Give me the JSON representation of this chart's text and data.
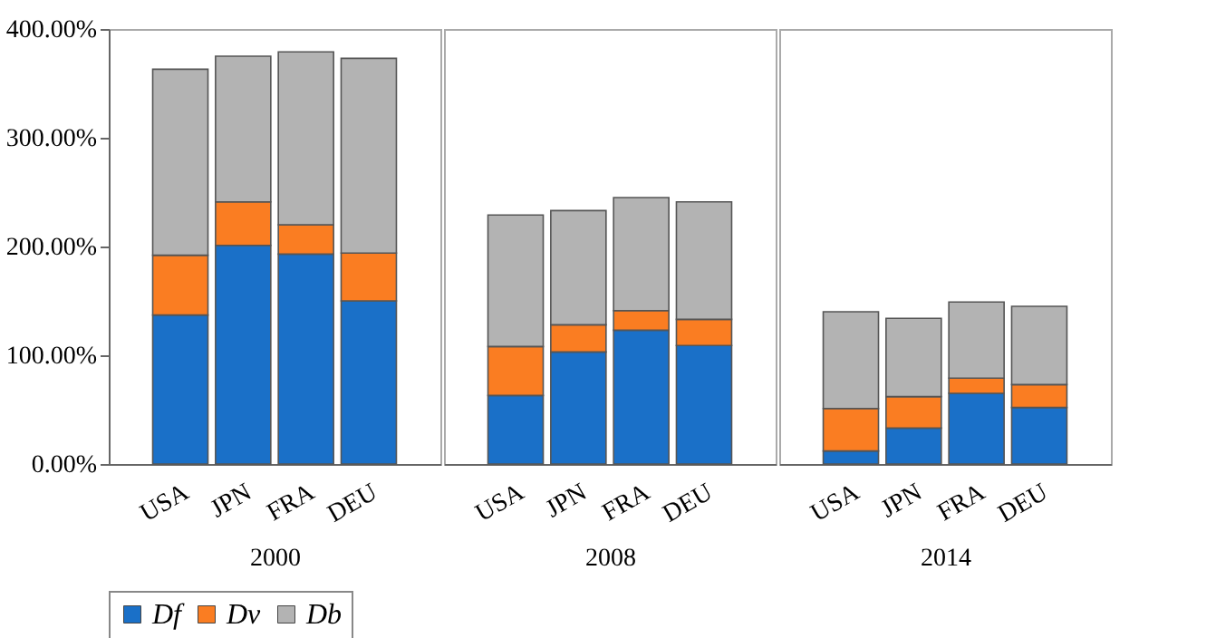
{
  "chart_data": [
    {
      "type": "bar",
      "stacked": true,
      "xlabel": "2000",
      "categories": [
        "USA",
        "JPN",
        "FRA",
        "DEU"
      ],
      "series": [
        {
          "name": "Df",
          "color": "#1a70c8",
          "values": [
            137,
            201,
            193,
            150
          ]
        },
        {
          "name": "Dv",
          "color": "#fa7d22",
          "values": [
            55,
            40,
            27,
            44
          ]
        },
        {
          "name": "Db",
          "color": "#b3b3b3",
          "values": [
            171,
            134,
            159,
            179
          ]
        }
      ],
      "ylim": [
        0,
        400
      ],
      "yticks": [
        {
          "value": 0,
          "label": "0.00%"
        },
        {
          "value": 100,
          "label": "100.00%"
        },
        {
          "value": 200,
          "label": "200.00%"
        },
        {
          "value": 300,
          "label": "300.00%"
        },
        {
          "value": 400,
          "label": "400.00%"
        }
      ],
      "legend": "bottom"
    },
    {
      "type": "bar",
      "stacked": true,
      "xlabel": "2008",
      "categories": [
        "USA",
        "JPN",
        "FRA",
        "DEU"
      ],
      "series": [
        {
          "color": "#1a70c8",
          "values": [
            63,
            103,
            123,
            109
          ]
        },
        {
          "color": "#fa7d22",
          "values": [
            45,
            25,
            18,
            24
          ]
        },
        {
          "color": "#b3b3b3",
          "values": [
            121,
            105,
            104,
            108
          ]
        }
      ],
      "ylim": [
        0,
        400
      ],
      "tick_labels": "x"
    },
    {
      "type": "bar",
      "stacked": true,
      "xlabel": "2014",
      "categories": [
        "USA",
        "JPN",
        "FRA",
        "DEU"
      ],
      "series": [
        {
          "color": "#1a70c8",
          "values": [
            12,
            33,
            65,
            52
          ]
        },
        {
          "color": "#fa7d22",
          "values": [
            39,
            29,
            14,
            21
          ]
        },
        {
          "color": "#b3b3b3",
          "values": [
            89,
            72,
            70,
            72
          ]
        }
      ],
      "ylim": [
        0,
        400
      ],
      "tick_labels": "x"
    }
  ]
}
